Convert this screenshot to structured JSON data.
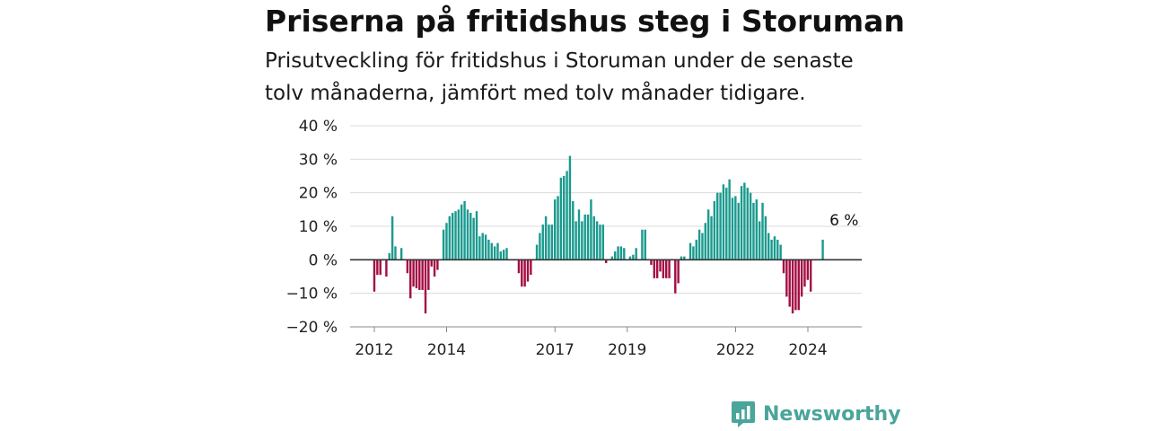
{
  "title": "Priserna på fritidshus steg i Storuman",
  "subtitle": "Prisutveckling för fritidshus i Storuman under de senaste tolv månaderna, jämfört med tolv månader tidigare.",
  "brand": "Newsworthy",
  "colors": {
    "positive": "#1a9a8e",
    "negative": "#a30d43",
    "brand": "#4aa59a"
  },
  "chart_data": {
    "type": "bar",
    "ylim": [
      -20,
      40
    ],
    "yticks": [
      {
        "v": 40,
        "label": "40 %"
      },
      {
        "v": 30,
        "label": "30 %"
      },
      {
        "v": 20,
        "label": "20 %"
      },
      {
        "v": 10,
        "label": "10 %"
      },
      {
        "v": 0,
        "label": "0 %"
      },
      {
        "v": -10,
        "label": "−10 %"
      },
      {
        "v": -20,
        "label": "−20 %"
      }
    ],
    "xticks": [
      {
        "x": 2012,
        "label": "2012"
      },
      {
        "x": 2014,
        "label": "2014"
      },
      {
        "x": 2017,
        "label": "2017"
      },
      {
        "x": 2019,
        "label": "2019"
      },
      {
        "x": 2022,
        "label": "2022"
      },
      {
        "x": 2024,
        "label": "2024"
      }
    ],
    "x_start": 2012.0,
    "x_step": 0.0833,
    "values": [
      -9.5,
      -4.5,
      -4.5,
      null,
      -5,
      2,
      13,
      4,
      0,
      3.5,
      0,
      -4,
      -11.5,
      -8,
      -8.5,
      -9,
      -9,
      -16,
      -9,
      -2,
      -5,
      -3,
      null,
      9,
      11,
      13,
      14,
      14.5,
      15,
      16.5,
      17.5,
      15,
      14,
      12.5,
      14.5,
      7,
      8,
      7.5,
      6,
      5,
      4,
      5,
      2.5,
      3,
      3.5,
      null,
      null,
      null,
      -4,
      -8,
      -8,
      -6.5,
      -4.5,
      null,
      4.5,
      8,
      10.5,
      13,
      10.5,
      10.5,
      18,
      19,
      24.5,
      25,
      26.5,
      31,
      17.5,
      11.5,
      15,
      11.5,
      13.5,
      13.5,
      18,
      13,
      11.5,
      10.5,
      10.5,
      -1,
      null,
      1,
      2.5,
      4,
      4,
      3.5,
      null,
      1,
      1.5,
      3.5,
      0,
      9,
      9,
      0,
      -1.5,
      -5.5,
      -5.5,
      -3.5,
      -5.5,
      -5.5,
      -5.5,
      null,
      -10,
      -7,
      1,
      1,
      null,
      5,
      4,
      6,
      9,
      8,
      11,
      15,
      13,
      17.5,
      20,
      20,
      22.5,
      21.5,
      24,
      18.5,
      19,
      17,
      22,
      23,
      21.5,
      20,
      17,
      18,
      11.5,
      17,
      13,
      8,
      6,
      7,
      6,
      4.5,
      -4,
      -11,
      -14,
      -16,
      -15,
      -15,
      -11,
      -8,
      -6,
      -9.5,
      null,
      null,
      null,
      6
    ],
    "annotation": {
      "label": "6 %",
      "x": 2025.0,
      "y": 6
    }
  }
}
